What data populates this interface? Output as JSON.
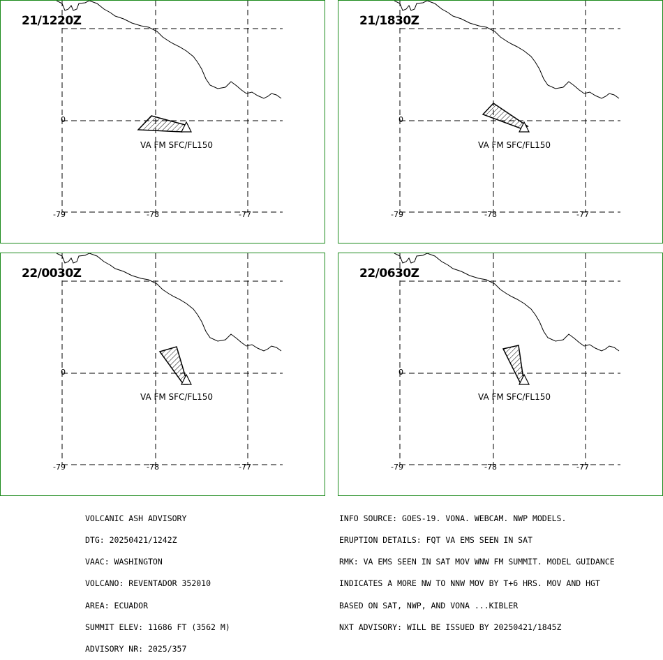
{
  "panels": [
    {
      "time": "21/1220Z",
      "label": "VA FM SFC/FL150"
    },
    {
      "time": "21/1830Z",
      "label": "VA FM SFC/FL150"
    },
    {
      "time": "22/0030Z",
      "label": "VA FM SFC/FL150"
    },
    {
      "time": "22/0630Z",
      "label": "VA FM SFC/FL150"
    }
  ],
  "axis": {
    "lon_labels": [
      "-79",
      "-78",
      "-77"
    ],
    "lat_label": "0"
  },
  "advisory_left": [
    "VOLCANIC ASH ADVISORY",
    "DTG: 20250421/1242Z",
    "VAAC: WASHINGTON",
    "VOLCANO: REVENTADOR 352010",
    "AREA: ECUADOR",
    "SUMMIT ELEV: 11686 FT (3562 M)",
    "ADVISORY NR: 2025/357"
  ],
  "advisory_right": [
    "INFO SOURCE: GOES-19. VONA. WEBCAM. NWP MODELS.",
    "ERUPTION DETAILS: FQT VA EMS SEEN IN SAT",
    "RMK: VA EMS SEEN IN SAT MOV WNW FM SUMMIT. MODEL GUIDANCE",
    "INDICATES A MORE NW TO NNW MOV BY T+6 HRS. MOV AND HGT",
    "BASED ON SAT, NWP, AND VONA ...KIBLER",
    "NXT ADVISORY: WILL BE ISSUED BY 20250421/1845Z"
  ],
  "colors": {
    "panel_border": "#1a8a1a",
    "ink": "#000000"
  },
  "icons": {
    "volcano": "triangle-volcano-icon"
  }
}
